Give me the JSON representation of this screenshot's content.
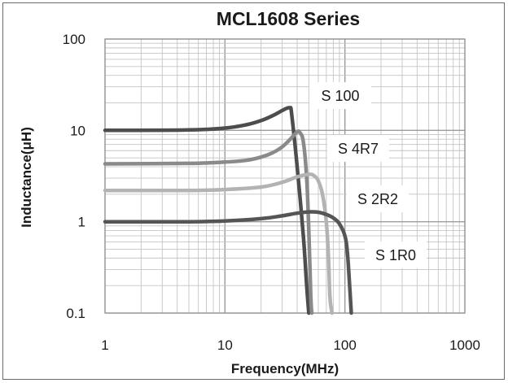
{
  "chart_data": {
    "type": "line",
    "title": "MCL1608 Series",
    "xlabel": "Frequency(MHz)",
    "ylabel": "Inductance(μH)",
    "x_scale": "log",
    "y_scale": "log",
    "xlim": [
      1,
      1000
    ],
    "ylim": [
      0.1,
      100
    ],
    "x_ticks": [
      "1",
      "10",
      "100",
      "1000"
    ],
    "y_ticks": [
      "0.1",
      "1",
      "10",
      "100"
    ],
    "grid": true,
    "series": [
      {
        "name": "S 100",
        "color": "#4d4d4d",
        "x": [
          1,
          5,
          10,
          15,
          20,
          25,
          30,
          33,
          35,
          36,
          40,
          45,
          48,
          50
        ],
        "y": [
          10,
          10.1,
          10.6,
          11.5,
          12.8,
          14.5,
          16.5,
          17.5,
          17.5,
          15,
          4,
          0.7,
          0.2,
          0.1
        ]
      },
      {
        "name": "S 4R7",
        "color": "#8a8a8a",
        "x": [
          1,
          5,
          10,
          15,
          20,
          25,
          30,
          35,
          40,
          42,
          45,
          48,
          50,
          52,
          53
        ],
        "y": [
          4.3,
          4.35,
          4.5,
          4.7,
          5.1,
          5.7,
          6.6,
          8,
          9.6,
          9.5,
          7.5,
          3,
          0.8,
          0.15,
          0.1
        ]
      },
      {
        "name": "S 2R2",
        "color": "#b3b3b3",
        "x": [
          1,
          5,
          10,
          20,
          30,
          40,
          50,
          55,
          60,
          65,
          70,
          73,
          75,
          78
        ],
        "y": [
          2.2,
          2.2,
          2.25,
          2.4,
          2.7,
          3.1,
          3.3,
          3.2,
          2.8,
          2.0,
          1.0,
          0.4,
          0.15,
          0.1
        ]
      },
      {
        "name": "S 1R0",
        "color": "#555555",
        "x": [
          1,
          5,
          10,
          20,
          30,
          40,
          50,
          60,
          70,
          80,
          90,
          100,
          105,
          110,
          113
        ],
        "y": [
          1.0,
          1.0,
          1.02,
          1.08,
          1.16,
          1.24,
          1.28,
          1.27,
          1.2,
          1.1,
          0.95,
          0.7,
          0.45,
          0.18,
          0.1
        ]
      }
    ]
  }
}
